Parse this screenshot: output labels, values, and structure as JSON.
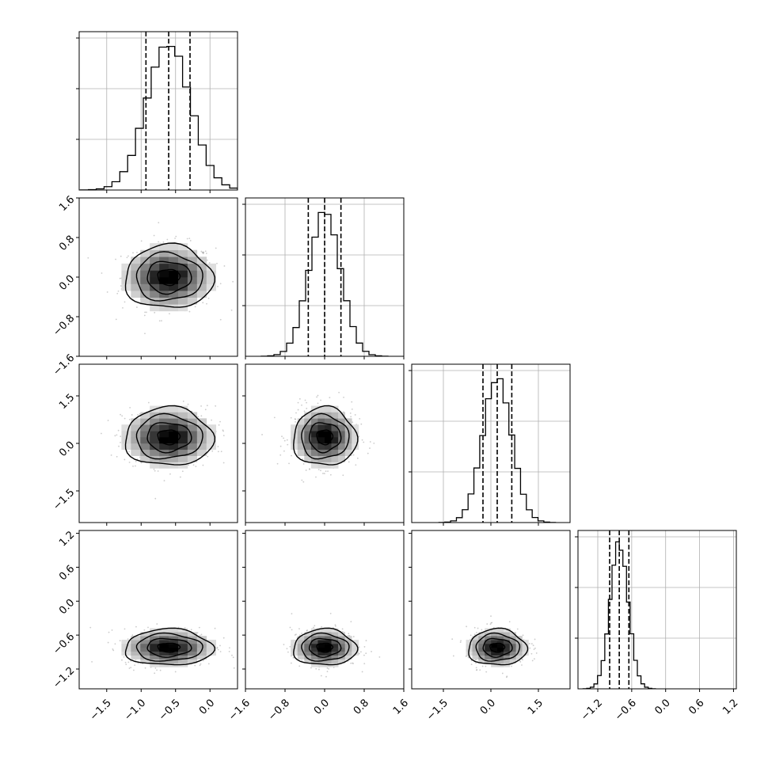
{
  "chart_data": {
    "type": "corner",
    "title": "",
    "n_params": 4,
    "grid": true,
    "params": [
      {
        "center": -0.6,
        "sigma": 0.32,
        "q16": -0.93,
        "q50": -0.6,
        "q84": -0.29,
        "range": [
          -1.9,
          0.4
        ],
        "ticks": [
          -1.5,
          -1.0,
          -0.5,
          0.0
        ],
        "tick_labels": [
          "−1.5",
          "−1.0",
          "−0.5",
          "0.0"
        ]
      },
      {
        "center": 0.0,
        "sigma": 0.32,
        "q16": -0.33,
        "q50": 0.0,
        "q84": 0.33,
        "range": [
          -1.6,
          1.6
        ],
        "ticks": [
          -1.6,
          -0.8,
          0.0,
          0.8,
          1.6
        ],
        "tick_labels": [
          "−1.6",
          "−0.8",
          "0.0",
          "0.8",
          "1.6"
        ]
      },
      {
        "center": 0.2,
        "sigma": 0.46,
        "q16": -0.25,
        "q50": 0.2,
        "q84": 0.66,
        "range": [
          -2.5,
          2.5
        ],
        "ticks": [
          -1.5,
          0.0,
          1.5
        ],
        "tick_labels": [
          "−1.5",
          "0.0",
          "1.5"
        ]
      },
      {
        "center": -0.82,
        "sigma": 0.16,
        "q16": -0.99,
        "q50": -0.82,
        "q84": -0.65,
        "range": [
          -1.55,
          1.25
        ],
        "ticks": [
          -1.2,
          -0.6,
          0.0,
          0.6,
          1.2
        ],
        "tick_labels": [
          "−1.2",
          "−0.6",
          "0.0",
          "0.6",
          "1.2"
        ]
      }
    ],
    "histogram": {
      "bins": 20,
      "style": "step",
      "quantiles": [
        0.16,
        0.5,
        0.84
      ]
    },
    "contour_levels_sigma": [
      0.5,
      1.0,
      1.5,
      2.0
    ],
    "scatter_points": 450
  }
}
